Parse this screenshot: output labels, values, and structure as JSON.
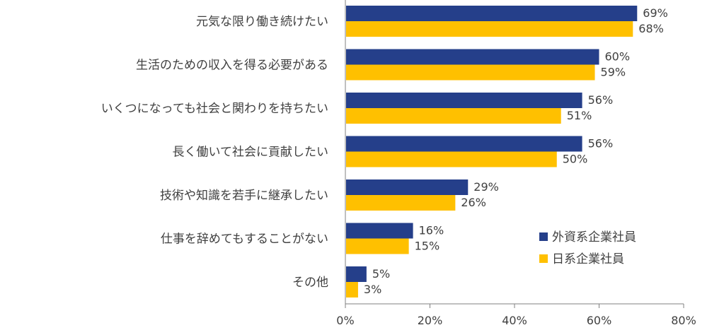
{
  "chart_data": {
    "type": "bar",
    "orientation": "horizontal",
    "categories": [
      "元気な限り働き続けたい",
      "生活のための収入を得る必要がある",
      "いくつになっても社会と関わりを持ちたい",
      "長く働いて社会に貢献したい",
      "技術や知識を若手に継承したい",
      "仕事を辞めてもすることがない",
      "その他"
    ],
    "series": [
      {
        "name": "外資系企業社員",
        "values": [
          69,
          60,
          56,
          56,
          29,
          16,
          5
        ],
        "color": "#253F8A"
      },
      {
        "name": "日系企業社員",
        "values": [
          68,
          59,
          51,
          50,
          26,
          15,
          3
        ],
        "color": "#FFC000"
      }
    ],
    "value_suffix": "%",
    "xlim": [
      0,
      80
    ],
    "xticks": [
      "0%",
      "20%",
      "40%",
      "60%",
      "80%"
    ],
    "grid": false,
    "legend_position": "bottom-right",
    "title": "",
    "xlabel": "",
    "ylabel": ""
  }
}
